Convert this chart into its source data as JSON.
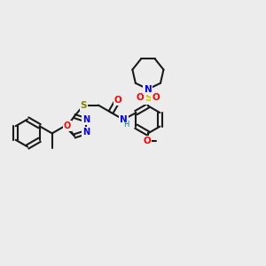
{
  "background_color": "#ececec",
  "bond_color": "#1a1a1a",
  "bond_width": 1.5,
  "atom_colors": {
    "N": "#0000ff",
    "O": "#ff0000",
    "S": "#cccc00",
    "S_thioether": "#808000",
    "H": "#008080",
    "C": "#1a1a1a"
  },
  "font_size": 7.5
}
